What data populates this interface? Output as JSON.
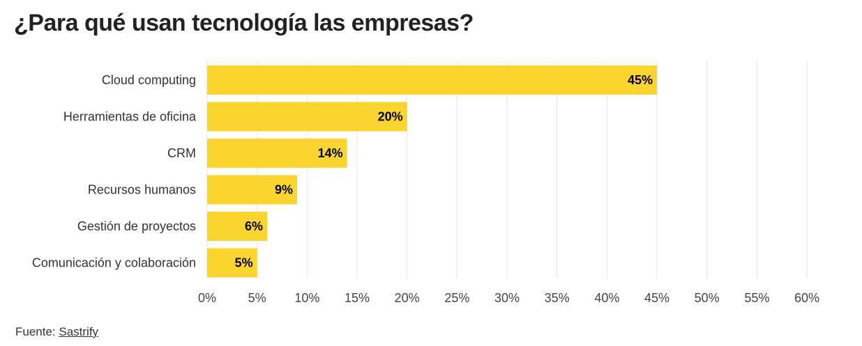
{
  "title": "¿Para qué usan tecnología las empresas?",
  "source": {
    "prefix": "Fuente: ",
    "link_text": "Sastrify"
  },
  "colors": {
    "bar": "#fbd52f",
    "grid": "#e6e6e6"
  },
  "chart_data": {
    "type": "bar",
    "orientation": "horizontal",
    "categories": [
      "Cloud computing",
      "Herramientas de oficina",
      "CRM",
      "Recursos humanos",
      "Gestión de proyectos",
      "Comunicación y colaboración"
    ],
    "values": [
      45,
      20,
      14,
      9,
      6,
      5
    ],
    "value_labels": [
      "45%",
      "20%",
      "14%",
      "9%",
      "6%",
      "5%"
    ],
    "x_ticks": [
      0,
      5,
      10,
      15,
      20,
      25,
      30,
      35,
      40,
      45,
      50,
      55,
      60
    ],
    "x_tick_labels": [
      "0%",
      "5%",
      "10%",
      "15%",
      "20%",
      "25%",
      "30%",
      "35%",
      "40%",
      "45%",
      "50%",
      "55%",
      "60%"
    ],
    "xlim": [
      0,
      60
    ],
    "grid": true,
    "legend": false
  }
}
